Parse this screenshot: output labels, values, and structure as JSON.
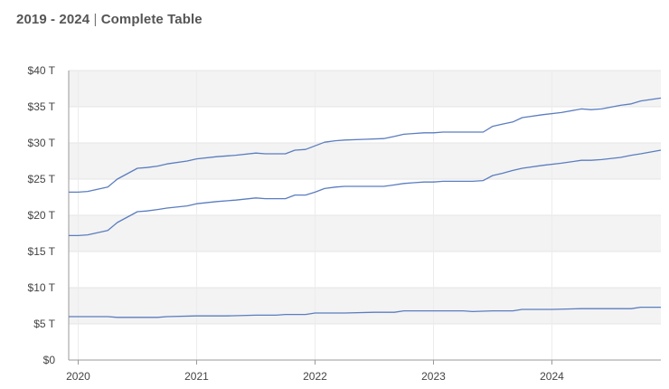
{
  "header": {
    "range": "2019 - 2024",
    "separator": "|",
    "subtitle": "Complete Table"
  },
  "chart_data": {
    "type": "line",
    "title": "2019 - 2024 | Complete Table",
    "xlabel": "",
    "ylabel": "",
    "x_ticks": [
      "2020",
      "2021",
      "2022",
      "2023",
      "2024"
    ],
    "x_range": [
      2019.92,
      2024.92
    ],
    "y_ticks": [
      "$0",
      "$5 T",
      "$10 T",
      "$15 T",
      "$20 T",
      "$25 T",
      "$30 T",
      "$35 T",
      "$40 T"
    ],
    "ylim": [
      0,
      40
    ],
    "grid": true,
    "banded_background": true,
    "line_color": "#5b7dbf",
    "series": [
      {
        "values": [
          [
            2019.92,
            23.2
          ],
          [
            2020.0,
            23.2
          ],
          [
            2020.08,
            23.3
          ],
          [
            2020.25,
            23.9
          ],
          [
            2020.33,
            25.0
          ],
          [
            2020.5,
            26.5
          ],
          [
            2020.58,
            26.6
          ],
          [
            2020.67,
            26.8
          ],
          [
            2020.75,
            27.1
          ],
          [
            2020.92,
            27.5
          ],
          [
            2021.0,
            27.8
          ],
          [
            2021.17,
            28.1
          ],
          [
            2021.33,
            28.3
          ],
          [
            2021.5,
            28.6
          ],
          [
            2021.58,
            28.5
          ],
          [
            2021.75,
            28.5
          ],
          [
            2021.83,
            29.0
          ],
          [
            2021.92,
            29.1
          ],
          [
            2022.0,
            29.6
          ],
          [
            2022.08,
            30.1
          ],
          [
            2022.17,
            30.3
          ],
          [
            2022.25,
            30.4
          ],
          [
            2022.42,
            30.5
          ],
          [
            2022.58,
            30.6
          ],
          [
            2022.67,
            30.9
          ],
          [
            2022.75,
            31.2
          ],
          [
            2022.83,
            31.3
          ],
          [
            2022.92,
            31.4
          ],
          [
            2023.0,
            31.4
          ],
          [
            2023.08,
            31.5
          ],
          [
            2023.17,
            31.5
          ],
          [
            2023.33,
            31.5
          ],
          [
            2023.42,
            31.5
          ],
          [
            2023.5,
            32.3
          ],
          [
            2023.58,
            32.6
          ],
          [
            2023.67,
            32.9
          ],
          [
            2023.75,
            33.5
          ],
          [
            2023.92,
            33.9
          ],
          [
            2024.08,
            34.2
          ],
          [
            2024.25,
            34.7
          ],
          [
            2024.33,
            34.6
          ],
          [
            2024.42,
            34.7
          ],
          [
            2024.58,
            35.2
          ],
          [
            2024.67,
            35.4
          ],
          [
            2024.75,
            35.8
          ],
          [
            2024.92,
            36.2
          ]
        ]
      },
      {
        "values": [
          [
            2019.92,
            17.2
          ],
          [
            2020.0,
            17.2
          ],
          [
            2020.08,
            17.3
          ],
          [
            2020.25,
            17.9
          ],
          [
            2020.33,
            19.0
          ],
          [
            2020.5,
            20.5
          ],
          [
            2020.58,
            20.6
          ],
          [
            2020.67,
            20.8
          ],
          [
            2020.75,
            21.0
          ],
          [
            2020.92,
            21.3
          ],
          [
            2021.0,
            21.6
          ],
          [
            2021.17,
            21.9
          ],
          [
            2021.33,
            22.1
          ],
          [
            2021.5,
            22.4
          ],
          [
            2021.58,
            22.3
          ],
          [
            2021.75,
            22.3
          ],
          [
            2021.83,
            22.8
          ],
          [
            2021.92,
            22.8
          ],
          [
            2022.0,
            23.2
          ],
          [
            2022.08,
            23.7
          ],
          [
            2022.17,
            23.9
          ],
          [
            2022.25,
            24.0
          ],
          [
            2022.42,
            24.0
          ],
          [
            2022.58,
            24.0
          ],
          [
            2022.67,
            24.2
          ],
          [
            2022.75,
            24.4
          ],
          [
            2022.83,
            24.5
          ],
          [
            2022.92,
            24.6
          ],
          [
            2023.0,
            24.6
          ],
          [
            2023.08,
            24.7
          ],
          [
            2023.17,
            24.7
          ],
          [
            2023.33,
            24.7
          ],
          [
            2023.42,
            24.8
          ],
          [
            2023.5,
            25.5
          ],
          [
            2023.58,
            25.8
          ],
          [
            2023.67,
            26.2
          ],
          [
            2023.75,
            26.5
          ],
          [
            2023.92,
            26.9
          ],
          [
            2024.08,
            27.2
          ],
          [
            2024.25,
            27.6
          ],
          [
            2024.33,
            27.6
          ],
          [
            2024.42,
            27.7
          ],
          [
            2024.58,
            28.0
          ],
          [
            2024.67,
            28.3
          ],
          [
            2024.75,
            28.5
          ],
          [
            2024.92,
            29.0
          ]
        ]
      },
      {
        "values": [
          [
            2019.92,
            6.0
          ],
          [
            2020.08,
            6.0
          ],
          [
            2020.25,
            6.0
          ],
          [
            2020.33,
            5.9
          ],
          [
            2020.5,
            5.9
          ],
          [
            2020.67,
            5.9
          ],
          [
            2020.75,
            6.0
          ],
          [
            2021.0,
            6.1
          ],
          [
            2021.25,
            6.1
          ],
          [
            2021.5,
            6.2
          ],
          [
            2021.67,
            6.2
          ],
          [
            2021.75,
            6.3
          ],
          [
            2021.92,
            6.3
          ],
          [
            2022.0,
            6.5
          ],
          [
            2022.25,
            6.5
          ],
          [
            2022.5,
            6.6
          ],
          [
            2022.67,
            6.6
          ],
          [
            2022.75,
            6.8
          ],
          [
            2023.0,
            6.8
          ],
          [
            2023.25,
            6.8
          ],
          [
            2023.33,
            6.7
          ],
          [
            2023.5,
            6.8
          ],
          [
            2023.67,
            6.8
          ],
          [
            2023.75,
            7.0
          ],
          [
            2024.0,
            7.0
          ],
          [
            2024.25,
            7.1
          ],
          [
            2024.5,
            7.1
          ],
          [
            2024.67,
            7.1
          ],
          [
            2024.75,
            7.3
          ],
          [
            2024.92,
            7.3
          ]
        ]
      }
    ]
  }
}
